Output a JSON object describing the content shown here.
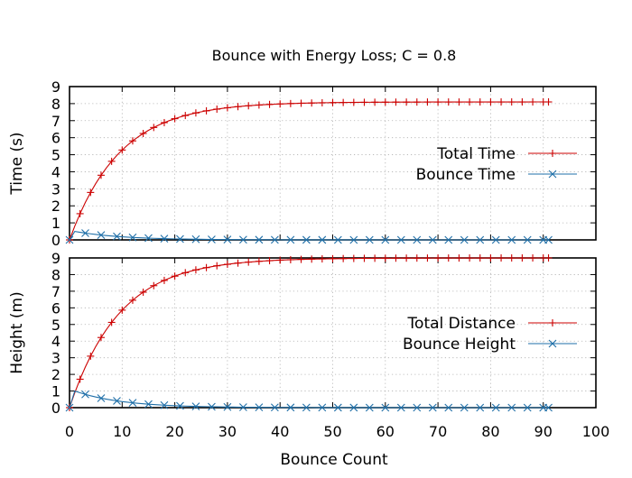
{
  "title": "Bounce with Energy Loss; C = 0.8",
  "xlabel": "Bounce Count",
  "colors": {
    "red": "#cc0000",
    "blue": "#1f6fa8",
    "grid": "#b0b0b0",
    "frame": "#000000"
  },
  "chart_data": [
    {
      "type": "line",
      "ylabel": "Time (s)",
      "xlim": [
        0,
        100
      ],
      "ylim": [
        0,
        9
      ],
      "x_ticks": [
        0,
        10,
        20,
        30,
        40,
        50,
        60,
        70,
        80,
        90,
        100
      ],
      "y_ticks": [
        0,
        1,
        2,
        3,
        4,
        5,
        6,
        7,
        8,
        9
      ],
      "grid": true,
      "legend_position": "right",
      "series": [
        {
          "name": "Total Time",
          "color": "#cc0000",
          "marker": "plus",
          "model": "cumulative",
          "x_end": 91,
          "marker_step": 2,
          "y_start": 0,
          "y_limit": 8.1,
          "ratio": 0.8
        },
        {
          "name": "Bounce Time",
          "color": "#1f6fa8",
          "marker": "cross",
          "model": "decay",
          "x_end": 91,
          "marker_step": 3,
          "y_start": 0,
          "y_first": 0.5,
          "ratio": 0.894
        }
      ]
    },
    {
      "type": "line",
      "ylabel": "Height (m)",
      "xlim": [
        0,
        100
      ],
      "ylim": [
        0,
        9
      ],
      "x_ticks": [
        0,
        10,
        20,
        30,
        40,
        50,
        60,
        70,
        80,
        90,
        100
      ],
      "y_ticks": [
        0,
        1,
        2,
        3,
        4,
        5,
        6,
        7,
        8,
        9
      ],
      "grid": true,
      "legend_position": "right",
      "series": [
        {
          "name": "Total Distance",
          "color": "#cc0000",
          "marker": "plus",
          "model": "cumulative",
          "x_end": 91,
          "marker_step": 2,
          "y_start": 0,
          "y_limit": 9.0,
          "ratio": 0.8
        },
        {
          "name": "Bounce Height",
          "color": "#1f6fa8",
          "marker": "cross",
          "model": "decay",
          "x_end": 91,
          "marker_step": 3,
          "y_start": 0,
          "y_first": 1.0,
          "ratio": 0.894
        }
      ]
    }
  ]
}
